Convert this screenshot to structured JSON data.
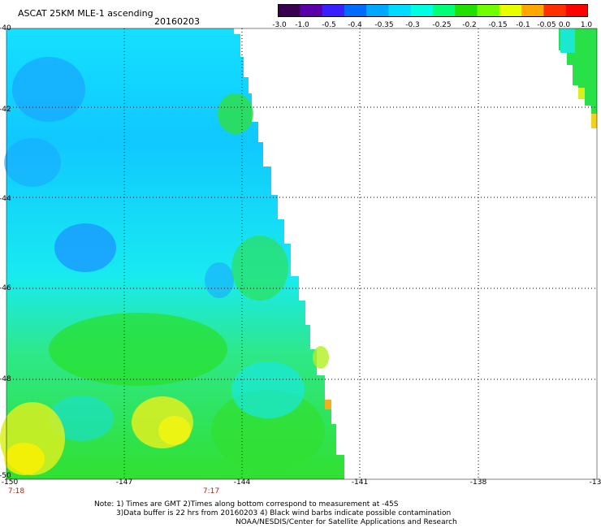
{
  "title": "ASCAT 25KM MLE-1 ascending",
  "date": "20160203",
  "colorbar": {
    "ticks": [
      "-3.0",
      "-1.0",
      "-0.5",
      "-0.4",
      "-0.35",
      "-0.3",
      "-0.25",
      "-0.2",
      "-0.15",
      "-0.1",
      "-0.05",
      "0.0",
      "1.0"
    ],
    "colors": [
      "#3a0050",
      "#5a00a8",
      "#3a20ff",
      "#006cff",
      "#00a8ff",
      "#00dcff",
      "#00ffe0",
      "#00ff78",
      "#20e000",
      "#70ff00",
      "#e8ff00",
      "#ffa800",
      "#ff3000",
      "#ff0000"
    ]
  },
  "map": {
    "lat_range": [
      -50,
      -40
    ],
    "lon_range": [
      -150,
      -135
    ],
    "y_ticks": [
      "-40",
      "-42",
      "-44",
      "-46",
      "-48",
      "-50"
    ],
    "x_ticks": [
      "-150",
      "-147",
      "-144",
      "-141",
      "-138",
      "-13"
    ],
    "grid": true,
    "gridline_style": "dotted"
  },
  "times": [
    "7:18",
    "7:17"
  ],
  "notes": [
    "Note: 1) Times are GMT 2)Times along bottom correspond to measurement at -45S",
    "3)Data buffer is 22 hrs from 20160203 4) Black wind barbs indicate possible contamination",
    "NOAA/NESDIS/Center for Satellite Applications and Research"
  ]
}
